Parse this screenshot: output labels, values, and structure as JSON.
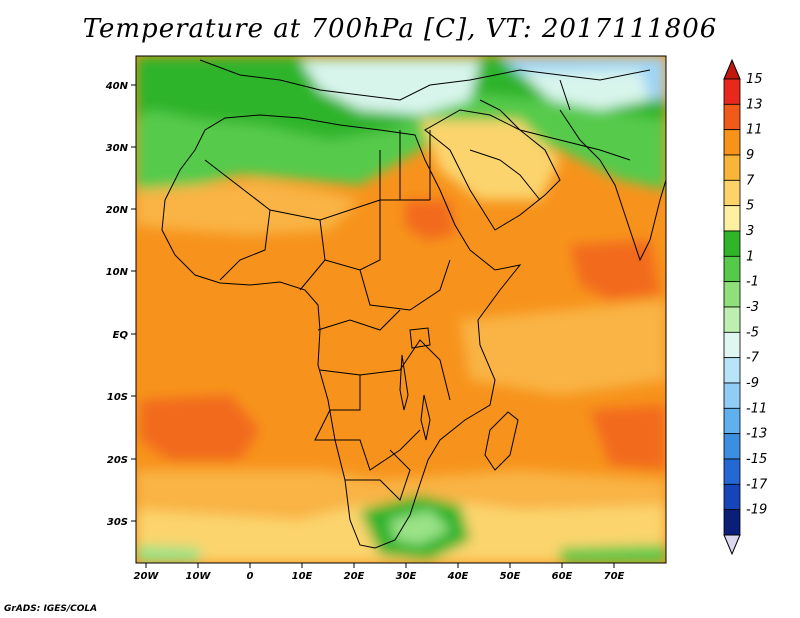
{
  "title": "Temperature at 700hPa [C], VT: 2017111806",
  "credit": "GrADS: IGES/COLA",
  "x_ticks": [
    "20W",
    "10W",
    "0",
    "10E",
    "20E",
    "30E",
    "40E",
    "50E",
    "60E",
    "70E"
  ],
  "y_ticks": [
    "40N",
    "30N",
    "20N",
    "10N",
    "EQ",
    "10S",
    "20S",
    "30S"
  ],
  "colorbar": {
    "labels": [
      "15",
      "13",
      "11",
      "9",
      "7",
      "5",
      "3",
      "1",
      "-1",
      "-3",
      "-5",
      "-7",
      "-9",
      "-11",
      "-13",
      "-15",
      "-17",
      "-19"
    ],
    "colors": [
      "#e8281c",
      "#f25a1a",
      "#f7921a",
      "#f9b43a",
      "#fbd36a",
      "#fdf0a0",
      "#2fb42a",
      "#55c94a",
      "#8fe07a",
      "#bdf0b0",
      "#dff7f0",
      "#b8e4f8",
      "#8fcdf4",
      "#5fb0ec",
      "#3b8ee0",
      "#2468d4",
      "#1545b8",
      "#0a1e7a"
    ],
    "top_color": "#c0180e",
    "bottom_color": "#dcd8f0"
  },
  "palette": {
    "warm_dark": "#f26b1d",
    "warm": "#f7931c",
    "warm_light": "#f9b445",
    "pale": "#fbd46d",
    "green_dark": "#2eb42a",
    "green": "#57ca4b",
    "green_light": "#9ae386",
    "cold_pale": "#d8f5ec",
    "cold_blue": "#9fd4f5"
  }
}
